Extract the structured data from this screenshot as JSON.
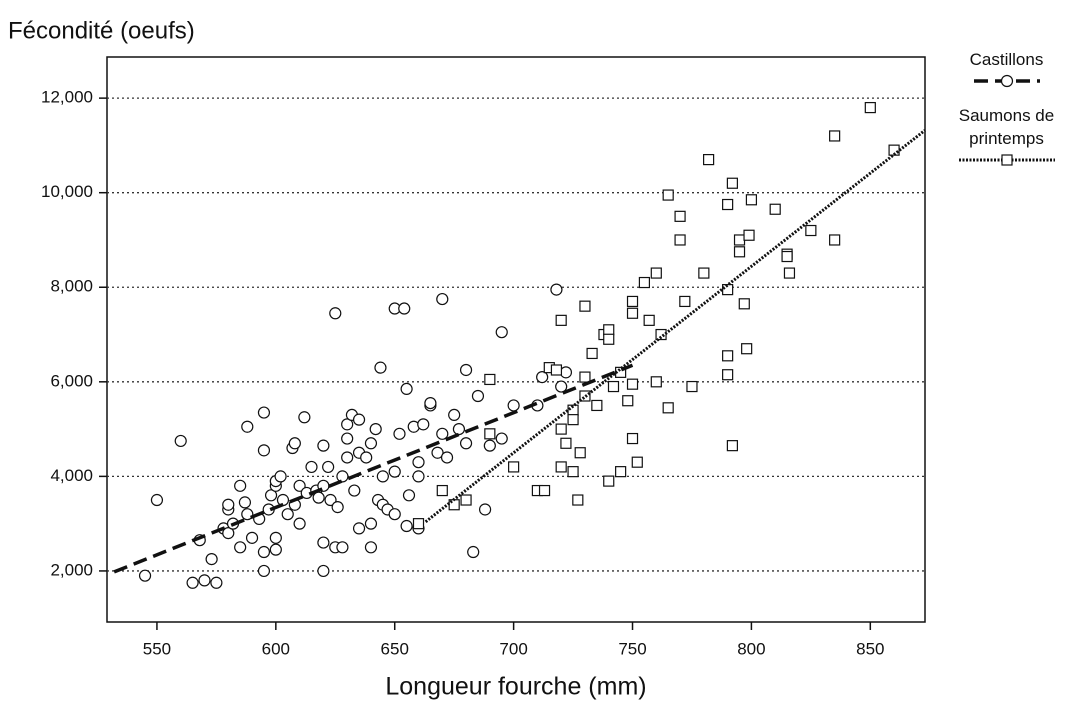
{
  "chart_data": {
    "type": "scatter",
    "y_axis_title": "Fécondité (oeufs)",
    "x_axis_title": "Longueur fourche (mm)",
    "xlim": [
      529,
      873
    ],
    "ylim": [
      920,
      12870
    ],
    "xticks": [
      550,
      600,
      650,
      700,
      750,
      800,
      850
    ],
    "yticks": [
      {
        "value": 2000,
        "label": "2,000"
      },
      {
        "value": 4000,
        "label": "4,000"
      },
      {
        "value": 6000,
        "label": "6,000"
      },
      {
        "value": 8000,
        "label": "8,000"
      },
      {
        "value": 10000,
        "label": "10,000"
      },
      {
        "value": 12000,
        "label": "12,000"
      }
    ],
    "grid": true,
    "legend": "right",
    "series": [
      {
        "name": "Castillons",
        "marker": "circle",
        "color": "#111111",
        "line_style": "dashed",
        "x": [
          545,
          550,
          560,
          565,
          568,
          570,
          573,
          575,
          578,
          580,
          580,
          580,
          582,
          585,
          585,
          587,
          588,
          588,
          590,
          593,
          595,
          595,
          595,
          595,
          597,
          598,
          600,
          600,
          600,
          600,
          602,
          603,
          605,
          607,
          608,
          608,
          610,
          610,
          612,
          613,
          615,
          617,
          618,
          620,
          620,
          620,
          620,
          622,
          623,
          625,
          625,
          626,
          628,
          628,
          630,
          630,
          630,
          632,
          633,
          635,
          635,
          635,
          638,
          640,
          640,
          640,
          642,
          643,
          644,
          645,
          645,
          647,
          650,
          650,
          650,
          652,
          654,
          655,
          655,
          656,
          658,
          660,
          660,
          660,
          662,
          665,
          665,
          668,
          670,
          670,
          672,
          675,
          677,
          680,
          680,
          683,
          685,
          688,
          690,
          695,
          695,
          700,
          710,
          712,
          718,
          720,
          722
        ],
        "values": [
          1900,
          3500,
          4750,
          1750,
          2650,
          1800,
          2250,
          1750,
          2900,
          3300,
          3400,
          2800,
          3000,
          2500,
          3800,
          3450,
          5050,
          3200,
          2700,
          3100,
          2000,
          2400,
          4550,
          5350,
          3300,
          3600,
          3800,
          3900,
          2700,
          2450,
          4000,
          3500,
          3200,
          4600,
          3400,
          4700,
          3000,
          3800,
          5250,
          3650,
          4200,
          3700,
          3550,
          2000,
          2600,
          3800,
          4650,
          4200,
          3500,
          7450,
          2500,
          3350,
          4000,
          2500,
          4800,
          4400,
          5100,
          5300,
          3700,
          2900,
          4500,
          5200,
          4400,
          3000,
          2500,
          4700,
          5000,
          3500,
          6300,
          4000,
          3400,
          3300,
          7550,
          3200,
          4100,
          4900,
          7550,
          5850,
          2950,
          3600,
          5050,
          4300,
          4000,
          2900,
          5100,
          5500,
          5550,
          4500,
          7750,
          4900,
          4400,
          5300,
          5000,
          6250,
          4700,
          2400,
          5700,
          3300,
          4650,
          7050,
          4800,
          5500,
          5500,
          6100,
          7950,
          5900,
          6200
        ],
        "trend": {
          "x": [
            532,
            750
          ],
          "y": [
            1980,
            6350
          ]
        }
      },
      {
        "name": "Saumons de printemps",
        "marker": "square",
        "color": "#111111",
        "line_style": "dotted",
        "x": [
          660,
          670,
          675,
          680,
          690,
          690,
          700,
          710,
          713,
          715,
          718,
          720,
          720,
          720,
          722,
          725,
          725,
          725,
          727,
          728,
          730,
          730,
          730,
          733,
          735,
          738,
          740,
          740,
          740,
          742,
          745,
          745,
          748,
          750,
          750,
          750,
          750,
          752,
          755,
          757,
          760,
          760,
          762,
          765,
          765,
          770,
          770,
          772,
          775,
          780,
          782,
          790,
          790,
          790,
          790,
          792,
          792,
          795,
          795,
          797,
          798,
          799,
          800,
          810,
          815,
          815,
          816,
          825,
          835,
          835,
          850,
          860
        ],
        "values": [
          3000,
          3700,
          3400,
          3500,
          6050,
          4900,
          4200,
          3700,
          3700,
          6300,
          6250,
          5000,
          7300,
          4200,
          4700,
          4100,
          5400,
          5200,
          3500,
          4500,
          7600,
          6100,
          5700,
          6600,
          5500,
          7000,
          7100,
          6900,
          3900,
          5900,
          4100,
          6200,
          5600,
          7700,
          5950,
          4800,
          7450,
          4300,
          8100,
          7300,
          6000,
          8300,
          7000,
          9950,
          5450,
          9500,
          9000,
          7700,
          5900,
          8300,
          10700,
          9750,
          7950,
          6550,
          6150,
          10200,
          4650,
          8750,
          9000,
          7650,
          6700,
          9100,
          9850,
          9650,
          8700,
          8650,
          8300,
          9200,
          11200,
          9000,
          11800,
          10900
        ],
        "trend": {
          "x": [
            663,
            873
          ],
          "y": [
            3040,
            11320
          ]
        }
      }
    ]
  }
}
